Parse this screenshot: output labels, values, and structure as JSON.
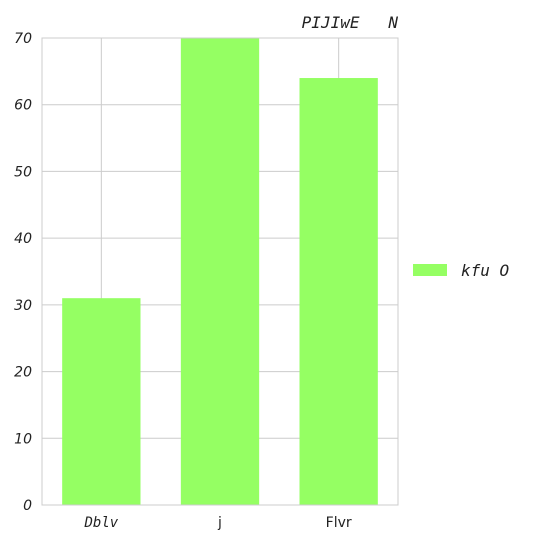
{
  "chart_data": {
    "type": "bar",
    "title": "PIJIwE   N",
    "xlabel": "",
    "ylabel": "",
    "categories": [
      "Dblv",
      "j",
      "Flvr"
    ],
    "series": [
      {
        "name": "kfu O",
        "values": [
          31,
          70,
          64
        ],
        "color": "#95ff63"
      }
    ],
    "ylim": [
      0,
      70
    ],
    "yticks": [
      0,
      10,
      20,
      30,
      40,
      50,
      60,
      70
    ],
    "grid": true,
    "legend_position": "right"
  }
}
